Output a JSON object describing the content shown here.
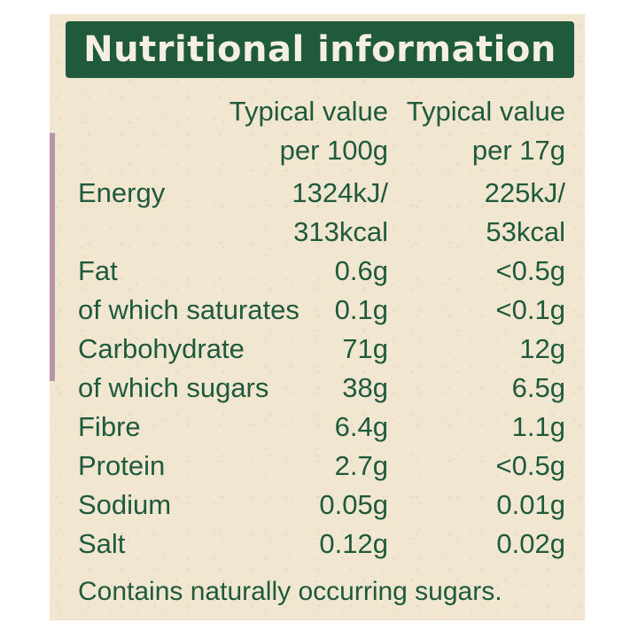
{
  "title": "Nutritional information",
  "columns": {
    "per_100g": [
      "Typical value",
      "per 100g"
    ],
    "per_serving": [
      "Typical value",
      "per 17g"
    ]
  },
  "energy": {
    "label": "Energy",
    "per_100g": [
      "1324kJ/",
      "313kcal"
    ],
    "per_serving": [
      "225kJ/",
      "53kcal"
    ]
  },
  "nutrients": [
    {
      "label": "Fat",
      "per_100g": "0.6g",
      "per_serving": "<0.5g"
    },
    {
      "label": "of which saturates",
      "per_100g": "0.1g",
      "per_serving": "<0.1g"
    },
    {
      "label": "Carbohydrate",
      "per_100g": "71g",
      "per_serving": "12g"
    },
    {
      "label": "of which sugars",
      "per_100g": "38g",
      "per_serving": "6.5g"
    },
    {
      "label": "Fibre",
      "per_100g": "6.4g",
      "per_serving": "1.1g"
    },
    {
      "label": "Protein",
      "per_100g": "2.7g",
      "per_serving": "<0.5g"
    },
    {
      "label": "Sodium",
      "per_100g": "0.05g",
      "per_serving": "0.01g"
    },
    {
      "label": "Salt",
      "per_100g": "0.12g",
      "per_serving": "0.02g"
    }
  ],
  "footer": "Contains naturally occurring sugars.",
  "colors": {
    "banner": "#1f5a3c",
    "text": "#1f5a3c",
    "panel": "#f1e6d0"
  }
}
